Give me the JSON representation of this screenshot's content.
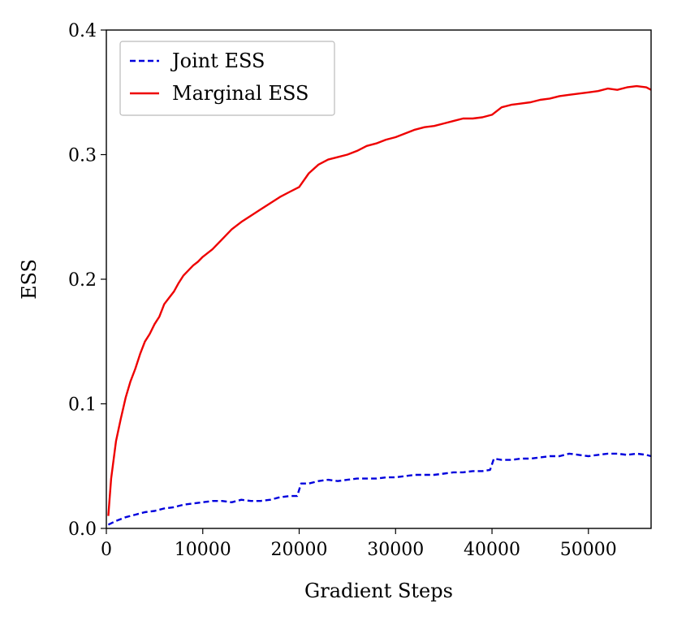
{
  "chart_data": {
    "type": "line",
    "title": "",
    "xlabel": "Gradient Steps",
    "ylabel": "ESS",
    "xlim": [
      0,
      56500
    ],
    "ylim": [
      0,
      0.4
    ],
    "xticks": [
      0,
      10000,
      20000,
      30000,
      40000,
      50000
    ],
    "xtick_labels": [
      "0",
      "10000",
      "20000",
      "30000",
      "40000",
      "50000"
    ],
    "yticks": [
      0,
      0.1,
      0.2,
      0.3,
      0.4
    ],
    "ytick_labels": [
      "0.0",
      "0.1",
      "0.2",
      "0.3",
      "0.4"
    ],
    "legend_position": "top-left",
    "series": [
      {
        "name": "Joint ESS",
        "color": "#0000dd",
        "style": "dashed",
        "x": [
          200,
          1000,
          2000,
          3000,
          4000,
          5000,
          6000,
          7000,
          8000,
          9000,
          10000,
          11000,
          12000,
          13000,
          14000,
          15000,
          16000,
          17000,
          18000,
          19000,
          19800,
          20200,
          21000,
          22000,
          23000,
          24000,
          25000,
          26000,
          27000,
          28000,
          29000,
          30000,
          31000,
          32000,
          33000,
          34000,
          35000,
          36000,
          37000,
          38000,
          39000,
          39800,
          40200,
          41000,
          42000,
          43000,
          44000,
          45000,
          46000,
          47000,
          48000,
          49000,
          50000,
          51000,
          52000,
          53000,
          54000,
          55000,
          56000,
          56500
        ],
        "values": [
          0.003,
          0.006,
          0.009,
          0.011,
          0.013,
          0.014,
          0.016,
          0.017,
          0.019,
          0.02,
          0.021,
          0.022,
          0.022,
          0.021,
          0.023,
          0.022,
          0.022,
          0.023,
          0.025,
          0.026,
          0.026,
          0.036,
          0.036,
          0.038,
          0.039,
          0.038,
          0.039,
          0.04,
          0.04,
          0.04,
          0.041,
          0.041,
          0.042,
          0.043,
          0.043,
          0.043,
          0.044,
          0.045,
          0.045,
          0.046,
          0.046,
          0.047,
          0.056,
          0.055,
          0.055,
          0.056,
          0.056,
          0.057,
          0.058,
          0.058,
          0.06,
          0.059,
          0.058,
          0.059,
          0.06,
          0.06,
          0.059,
          0.06,
          0.059,
          0.058
        ]
      },
      {
        "name": "Marginal ESS",
        "color": "#ee0000",
        "style": "solid",
        "x": [
          200,
          500,
          1000,
          1500,
          2000,
          2500,
          3000,
          3500,
          4000,
          4500,
          5000,
          5500,
          6000,
          6500,
          7000,
          7500,
          8000,
          8500,
          9000,
          9500,
          10000,
          11000,
          12000,
          13000,
          14000,
          15000,
          16000,
          17000,
          18000,
          19000,
          20000,
          21000,
          22000,
          23000,
          24000,
          25000,
          26000,
          27000,
          28000,
          29000,
          30000,
          31000,
          32000,
          33000,
          34000,
          35000,
          36000,
          37000,
          38000,
          39000,
          40000,
          41000,
          42000,
          43000,
          44000,
          45000,
          46000,
          47000,
          48000,
          49000,
          50000,
          51000,
          52000,
          53000,
          54000,
          55000,
          56000,
          56500
        ],
        "values": [
          0.01,
          0.04,
          0.07,
          0.088,
          0.105,
          0.118,
          0.128,
          0.14,
          0.15,
          0.156,
          0.164,
          0.17,
          0.18,
          0.185,
          0.19,
          0.197,
          0.203,
          0.207,
          0.211,
          0.214,
          0.218,
          0.224,
          0.232,
          0.24,
          0.246,
          0.251,
          0.256,
          0.261,
          0.266,
          0.27,
          0.274,
          0.285,
          0.292,
          0.296,
          0.298,
          0.3,
          0.303,
          0.307,
          0.309,
          0.312,
          0.314,
          0.317,
          0.32,
          0.322,
          0.323,
          0.325,
          0.327,
          0.329,
          0.329,
          0.33,
          0.332,
          0.338,
          0.34,
          0.341,
          0.342,
          0.344,
          0.345,
          0.347,
          0.348,
          0.349,
          0.35,
          0.351,
          0.353,
          0.352,
          0.354,
          0.355,
          0.354,
          0.352
        ]
      }
    ]
  }
}
